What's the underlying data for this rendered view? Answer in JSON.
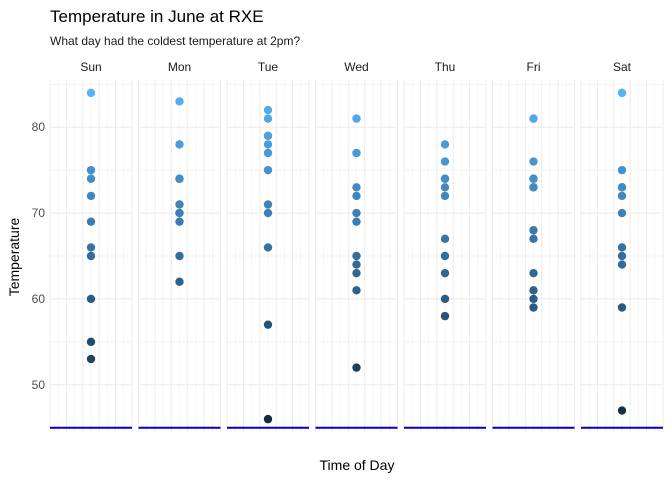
{
  "title": "Temperature in June at RXE",
  "subtitle": "What day had the coldest temperature at 2pm?",
  "chart_data": {
    "type": "scatter",
    "xlabel": "Time of Day",
    "ylabel": "Temperature",
    "ylim": [
      44.5,
      85.5
    ],
    "yticks": [
      50,
      60,
      70,
      80
    ],
    "grid": true,
    "reference_line": {
      "y": 45,
      "color": "#0000cc"
    },
    "color_scale": {
      "low": "#132b43",
      "high": "#56b1f7"
    },
    "facets": [
      {
        "name": "Sun",
        "values": [
          84,
          75,
          74,
          72,
          69,
          66,
          65,
          60,
          55,
          53
        ]
      },
      {
        "name": "Mon",
        "values": [
          83,
          78,
          74,
          74,
          71,
          70,
          70,
          69,
          65,
          62
        ]
      },
      {
        "name": "Tue",
        "values": [
          82,
          81,
          79,
          79,
          78,
          77,
          75,
          71,
          70,
          66,
          57,
          46
        ]
      },
      {
        "name": "Wed",
        "values": [
          81,
          77,
          73,
          72,
          70,
          69,
          65,
          64,
          63,
          61,
          52
        ]
      },
      {
        "name": "Thu",
        "values": [
          78,
          76,
          74,
          74,
          73,
          72,
          67,
          65,
          63,
          60,
          58
        ]
      },
      {
        "name": "Fri",
        "values": [
          81,
          76,
          74,
          74,
          73,
          73,
          68,
          67,
          63,
          61,
          60,
          59
        ]
      },
      {
        "name": "Sat",
        "values": [
          84,
          75,
          73,
          73,
          72,
          70,
          66,
          65,
          64,
          59,
          47
        ]
      }
    ]
  }
}
